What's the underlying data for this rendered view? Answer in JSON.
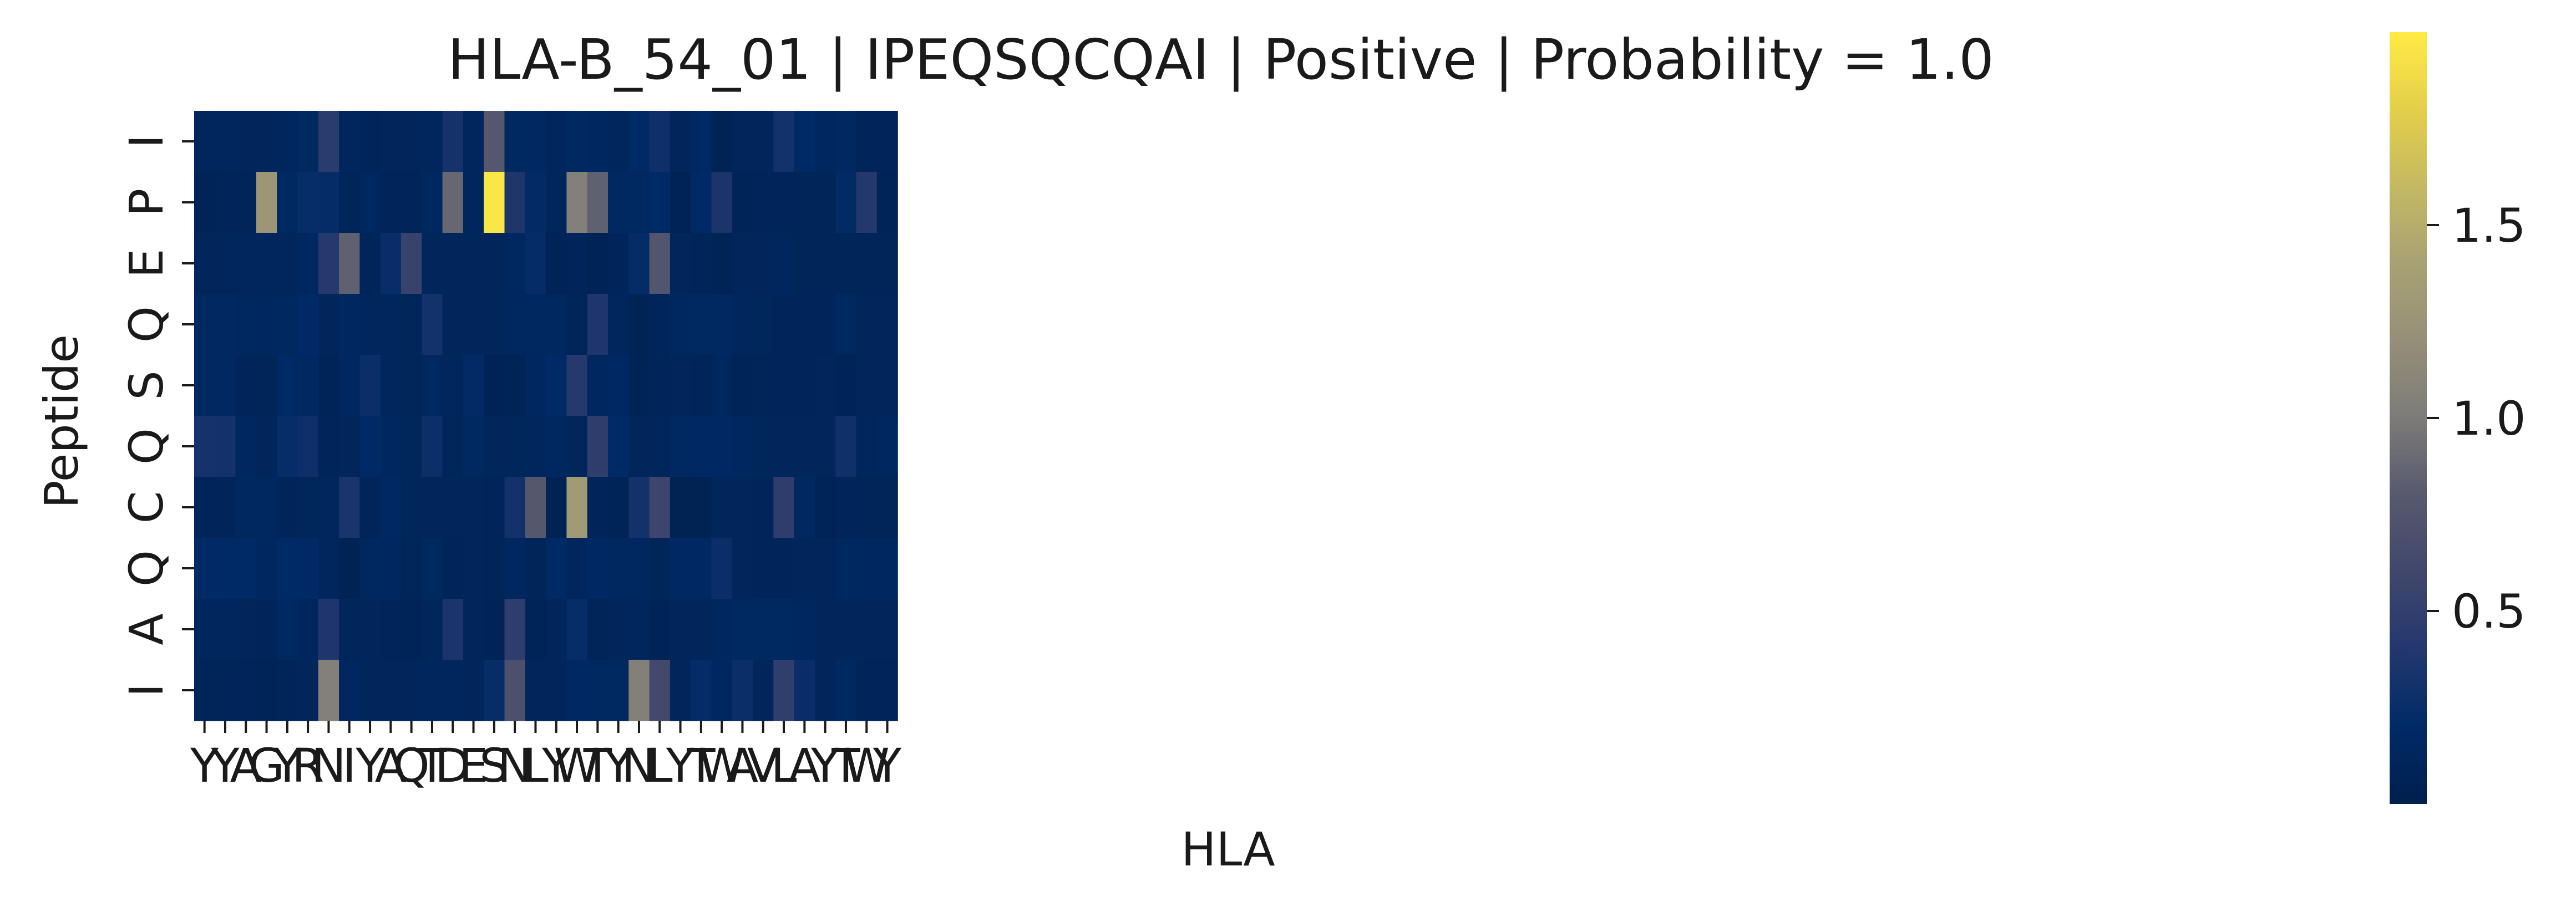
{
  "chart_data": {
    "type": "heatmap",
    "title": "HLA-B_54_01 | IPEQSQCQAI | Positive | Probability = 1.0",
    "xlabel": "HLA",
    "ylabel": "Peptide",
    "x_categories": [
      "Y",
      "Y",
      "A",
      "G",
      "Y",
      "R",
      "N",
      "I",
      "Y",
      "A",
      "Q",
      "T",
      "D",
      "E",
      "S",
      "N",
      "L",
      "Y",
      "W",
      "T",
      "Y",
      "N",
      "L",
      "Y",
      "T",
      "W",
      "A",
      "V",
      "L",
      "A",
      "Y",
      "T",
      "W",
      "Y"
    ],
    "y_categories": [
      "I",
      "P",
      "E",
      "Q",
      "S",
      "Q",
      "C",
      "Q",
      "A",
      "I"
    ],
    "values": [
      [
        0.12,
        0.13,
        0.12,
        0.12,
        0.13,
        0.17,
        0.45,
        0.13,
        0.1,
        0.11,
        0.11,
        0.13,
        0.32,
        0.13,
        0.78,
        0.16,
        0.16,
        0.13,
        0.16,
        0.15,
        0.13,
        0.2,
        0.28,
        0.12,
        0.18,
        0.06,
        0.11,
        0.11,
        0.31,
        0.2,
        0.15,
        0.16,
        0.09,
        0.1
      ],
      [
        0.07,
        0.09,
        0.1,
        1.28,
        0.17,
        0.24,
        0.23,
        0.1,
        0.15,
        0.1,
        0.1,
        0.15,
        0.88,
        0.13,
        1.97,
        0.38,
        0.21,
        0.13,
        1.05,
        0.85,
        0.17,
        0.17,
        0.2,
        0.06,
        0.2,
        0.36,
        0.08,
        0.1,
        0.1,
        0.09,
        0.09,
        0.21,
        0.41,
        0.08
      ],
      [
        0.12,
        0.12,
        0.13,
        0.13,
        0.12,
        0.15,
        0.42,
        0.85,
        0.1,
        0.25,
        0.54,
        0.12,
        0.11,
        0.11,
        0.12,
        0.15,
        0.23,
        0.08,
        0.1,
        0.06,
        0.1,
        0.23,
        0.75,
        0.12,
        0.09,
        0.07,
        0.11,
        0.11,
        0.13,
        0.09,
        0.09,
        0.09,
        0.09,
        0.09
      ],
      [
        0.16,
        0.16,
        0.15,
        0.14,
        0.15,
        0.19,
        0.12,
        0.14,
        0.13,
        0.13,
        0.1,
        0.31,
        0.11,
        0.11,
        0.11,
        0.14,
        0.15,
        0.15,
        0.1,
        0.37,
        0.13,
        0.07,
        0.1,
        0.15,
        0.17,
        0.16,
        0.13,
        0.11,
        0.1,
        0.1,
        0.1,
        0.16,
        0.11,
        0.12
      ],
      [
        0.16,
        0.17,
        0.1,
        0.09,
        0.2,
        0.17,
        0.08,
        0.14,
        0.26,
        0.13,
        0.1,
        0.15,
        0.11,
        0.21,
        0.06,
        0.07,
        0.14,
        0.2,
        0.42,
        0.14,
        0.18,
        0.07,
        0.09,
        0.11,
        0.09,
        0.15,
        0.08,
        0.09,
        0.1,
        0.1,
        0.12,
        0.08,
        0.11,
        0.11
      ],
      [
        0.32,
        0.31,
        0.15,
        0.12,
        0.24,
        0.28,
        0.1,
        0.11,
        0.19,
        0.14,
        0.11,
        0.27,
        0.1,
        0.16,
        0.11,
        0.12,
        0.13,
        0.15,
        0.12,
        0.48,
        0.19,
        0.11,
        0.11,
        0.17,
        0.18,
        0.18,
        0.14,
        0.11,
        0.11,
        0.11,
        0.12,
        0.29,
        0.12,
        0.14
      ],
      [
        0.1,
        0.1,
        0.15,
        0.15,
        0.1,
        0.11,
        0.13,
        0.35,
        0.1,
        0.18,
        0.11,
        0.11,
        0.11,
        0.11,
        0.1,
        0.31,
        0.78,
        0.06,
        1.32,
        0.1,
        0.07,
        0.31,
        0.58,
        0.05,
        0.05,
        0.11,
        0.11,
        0.1,
        0.48,
        0.17,
        0.07,
        0.1,
        0.09,
        0.09
      ],
      [
        0.2,
        0.2,
        0.19,
        0.14,
        0.2,
        0.2,
        0.13,
        0.06,
        0.14,
        0.15,
        0.09,
        0.16,
        0.09,
        0.12,
        0.09,
        0.14,
        0.09,
        0.2,
        0.13,
        0.18,
        0.15,
        0.14,
        0.09,
        0.18,
        0.18,
        0.26,
        0.12,
        0.1,
        0.1,
        0.11,
        0.11,
        0.15,
        0.14,
        0.14
      ],
      [
        0.13,
        0.13,
        0.12,
        0.1,
        0.17,
        0.13,
        0.37,
        0.11,
        0.11,
        0.1,
        0.08,
        0.11,
        0.36,
        0.11,
        0.08,
        0.47,
        0.08,
        0.11,
        0.24,
        0.09,
        0.11,
        0.13,
        0.08,
        0.12,
        0.12,
        0.15,
        0.17,
        0.17,
        0.16,
        0.14,
        0.11,
        0.11,
        0.11,
        0.11
      ],
      [
        0.09,
        0.09,
        0.1,
        0.07,
        0.09,
        0.11,
        1.05,
        0.14,
        0.11,
        0.11,
        0.11,
        0.13,
        0.13,
        0.12,
        0.24,
        0.7,
        0.12,
        0.12,
        0.18,
        0.16,
        0.16,
        1.05,
        0.62,
        0.11,
        0.23,
        0.14,
        0.26,
        0.11,
        0.49,
        0.25,
        0.11,
        0.17,
        0.09,
        0.1
      ]
    ],
    "vmin": 0.0,
    "vmax": 2.0,
    "colormap": "cividis",
    "colorbar_ticks": [
      0.5,
      1.0,
      1.5
    ],
    "colorbar_tick_labels": [
      "0.5",
      "1.0",
      "1.5"
    ],
    "grid": false,
    "legend": "colorbar-right"
  }
}
